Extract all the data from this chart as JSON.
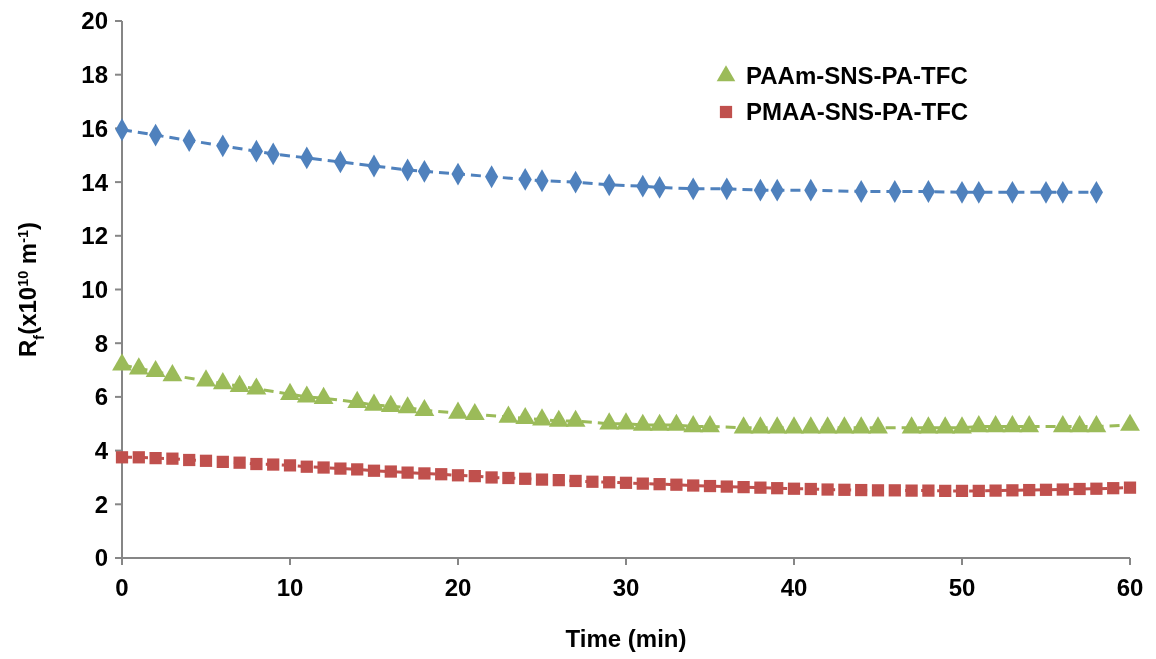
{
  "chart_data": {
    "type": "line",
    "xlabel": "Time (min)",
    "ylabel": "R$_{f}$(x10$^{10}$ m$^{-1}$)",
    "xlim": [
      0,
      60
    ],
    "xticks": [
      0,
      10,
      20,
      30,
      40,
      50,
      60
    ],
    "ylim": [
      0,
      20
    ],
    "yticks": [
      0,
      2,
      4,
      6,
      8,
      10,
      12,
      14,
      16,
      18,
      20
    ],
    "grid": false,
    "legend": "top right",
    "line_style": "dashed",
    "series": [
      {
        "color": "#4f81bd",
        "marker": "diamond",
        "x": [
          0,
          2,
          4,
          6,
          8,
          9,
          11,
          13,
          15,
          17,
          18,
          20,
          22,
          24,
          25,
          27,
          29,
          31,
          32,
          34,
          36,
          38,
          39,
          41,
          44,
          46,
          48,
          50,
          51,
          53,
          55,
          56,
          58
        ],
        "values": [
          15.95,
          15.75,
          15.55,
          15.35,
          15.15,
          15.05,
          14.9,
          14.75,
          14.6,
          14.45,
          14.4,
          14.3,
          14.2,
          14.1,
          14.05,
          14.0,
          13.9,
          13.85,
          13.8,
          13.75,
          13.75,
          13.7,
          13.7,
          13.7,
          13.65,
          13.65,
          13.65,
          13.62,
          13.62,
          13.62,
          13.62,
          13.62,
          13.62
        ]
      },
      {
        "name": "PAAm-SNS-PA-TFC",
        "color": "#9bbb59",
        "marker": "triangle",
        "x": [
          0,
          1,
          2,
          3,
          5,
          6,
          7,
          8,
          10,
          11,
          12,
          14,
          15,
          16,
          17,
          18,
          20,
          21,
          23,
          24,
          25,
          26,
          27,
          29,
          30,
          31,
          32,
          33,
          34,
          35,
          37,
          38,
          39,
          40,
          41,
          42,
          43,
          44,
          45,
          47,
          48,
          49,
          50,
          51,
          52,
          53,
          54,
          56,
          57,
          58,
          60
        ],
        "values": [
          7.2,
          7.05,
          6.95,
          6.8,
          6.6,
          6.5,
          6.4,
          6.3,
          6.1,
          6.0,
          5.95,
          5.8,
          5.7,
          5.65,
          5.6,
          5.5,
          5.4,
          5.35,
          5.25,
          5.2,
          5.15,
          5.1,
          5.1,
          5.0,
          5.0,
          4.95,
          4.95,
          4.95,
          4.9,
          4.9,
          4.85,
          4.85,
          4.85,
          4.85,
          4.85,
          4.85,
          4.85,
          4.85,
          4.85,
          4.85,
          4.85,
          4.85,
          4.85,
          4.9,
          4.9,
          4.9,
          4.9,
          4.9,
          4.9,
          4.9,
          4.95
        ]
      },
      {
        "name": "PMAA-SNS-PA-TFC",
        "color": "#c0504d",
        "marker": "square",
        "x": [
          0,
          1,
          2,
          3,
          4,
          5,
          6,
          7,
          8,
          9,
          10,
          11,
          12,
          13,
          14,
          15,
          16,
          17,
          18,
          19,
          20,
          21,
          22,
          23,
          24,
          25,
          26,
          27,
          28,
          29,
          30,
          31,
          32,
          33,
          34,
          35,
          36,
          37,
          38,
          39,
          40,
          41,
          42,
          43,
          44,
          45,
          46,
          47,
          48,
          49,
          50,
          51,
          52,
          53,
          54,
          55,
          56,
          57,
          58,
          59,
          60
        ],
        "values": [
          3.75,
          3.75,
          3.72,
          3.7,
          3.65,
          3.62,
          3.58,
          3.55,
          3.5,
          3.48,
          3.45,
          3.4,
          3.37,
          3.33,
          3.3,
          3.25,
          3.22,
          3.18,
          3.15,
          3.12,
          3.08,
          3.05,
          3.0,
          2.98,
          2.95,
          2.92,
          2.9,
          2.87,
          2.84,
          2.82,
          2.8,
          2.77,
          2.75,
          2.73,
          2.7,
          2.68,
          2.66,
          2.64,
          2.62,
          2.6,
          2.58,
          2.57,
          2.55,
          2.54,
          2.53,
          2.52,
          2.52,
          2.51,
          2.51,
          2.5,
          2.5,
          2.5,
          2.51,
          2.52,
          2.53,
          2.54,
          2.55,
          2.57,
          2.58,
          2.6,
          2.62
        ]
      }
    ]
  }
}
